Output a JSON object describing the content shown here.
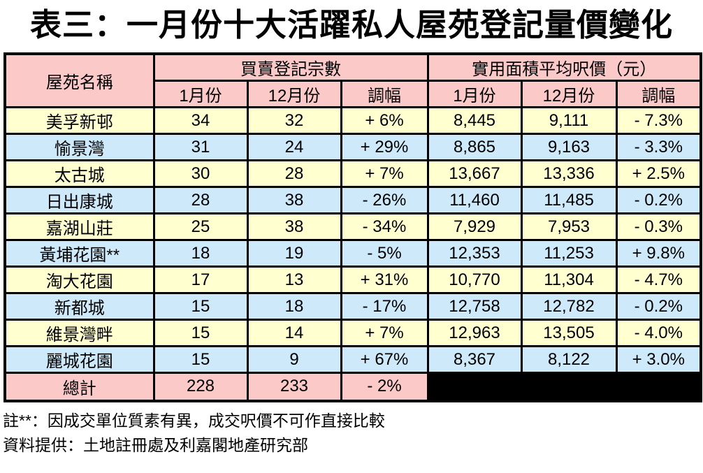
{
  "title": "表三：一月份十大活躍私人屋苑登記量價變化",
  "table": {
    "header": {
      "estate": "屋苑名稱",
      "registrations_group": "買賣登記宗數",
      "psf_group": "實用面積平均呎價（元）"
    },
    "sub_headers": [
      "1月份",
      "12月份",
      "調幅",
      "1月份",
      "12月份",
      "調幅"
    ],
    "rows": [
      {
        "name": "美孚新邨",
        "reg_jan": "34",
        "reg_dec": "32",
        "reg_chg": "+ 6%",
        "psf_jan": "8,445",
        "psf_dec": "9,111",
        "psf_chg": "- 7.3%"
      },
      {
        "name": "愉景灣",
        "reg_jan": "31",
        "reg_dec": "24",
        "reg_chg": "+ 29%",
        "psf_jan": "8,865",
        "psf_dec": "9,163",
        "psf_chg": "- 3.3%"
      },
      {
        "name": "太古城",
        "reg_jan": "30",
        "reg_dec": "28",
        "reg_chg": "+ 7%",
        "psf_jan": "13,667",
        "psf_dec": "13,336",
        "psf_chg": "+ 2.5%"
      },
      {
        "name": "日出康城",
        "reg_jan": "28",
        "reg_dec": "38",
        "reg_chg": "- 26%",
        "psf_jan": "11,460",
        "psf_dec": "11,485",
        "psf_chg": "- 0.2%"
      },
      {
        "name": "嘉湖山莊",
        "reg_jan": "25",
        "reg_dec": "38",
        "reg_chg": "- 34%",
        "psf_jan": "7,929",
        "psf_dec": "7,953",
        "psf_chg": "- 0.3%"
      },
      {
        "name": "黃埔花園**",
        "reg_jan": "18",
        "reg_dec": "19",
        "reg_chg": "- 5%",
        "psf_jan": "12,353",
        "psf_dec": "11,253",
        "psf_chg": "+ 9.8%"
      },
      {
        "name": "淘大花園",
        "reg_jan": "17",
        "reg_dec": "13",
        "reg_chg": "+ 31%",
        "psf_jan": "10,770",
        "psf_dec": "11,304",
        "psf_chg": "- 4.7%"
      },
      {
        "name": "新都城",
        "reg_jan": "15",
        "reg_dec": "18",
        "reg_chg": "- 17%",
        "psf_jan": "12,758",
        "psf_dec": "12,782",
        "psf_chg": "- 0.2%"
      },
      {
        "name": "維景灣畔",
        "reg_jan": "15",
        "reg_dec": "14",
        "reg_chg": "+ 7%",
        "psf_jan": "12,963",
        "psf_dec": "13,505",
        "psf_chg": "- 4.0%"
      },
      {
        "name": "麗城花園",
        "reg_jan": "15",
        "reg_dec": "9",
        "reg_chg": "+ 67%",
        "psf_jan": "8,367",
        "psf_dec": "8,122",
        "psf_chg": "+ 3.0%"
      }
    ],
    "total": {
      "name": "總計",
      "reg_jan": "228",
      "reg_dec": "233",
      "reg_chg": "- 2%"
    }
  },
  "footnotes": [
    "註**：因成交單位質素有異，成交呎價不可作直接比較",
    "資料提供：土地註冊處及利嘉閣地產研究部"
  ],
  "colors": {
    "header_pink": "#FCC9C9",
    "row_yellow": "#FFFFD0",
    "row_blue": "#CDE9FA",
    "blacked_out": "#000000",
    "border": "#000000"
  },
  "chart_data": {
    "type": "table",
    "title": "表三：一月份十大活躍私人屋苑登記量價變化",
    "columns": [
      "屋苑名稱",
      "買賣登記宗數 1月份",
      "買賣登記宗數 12月份",
      "買賣登記宗數 調幅",
      "實用面積平均呎價(元) 1月份",
      "實用面積平均呎價(元) 12月份",
      "實用面積平均呎價(元) 調幅"
    ],
    "rows": [
      [
        "美孚新邨",
        34,
        32,
        "+6%",
        8445,
        9111,
        "-7.3%"
      ],
      [
        "愉景灣",
        31,
        24,
        "+29%",
        8865,
        9163,
        "-3.3%"
      ],
      [
        "太古城",
        30,
        28,
        "+7%",
        13667,
        13336,
        "+2.5%"
      ],
      [
        "日出康城",
        28,
        38,
        "-26%",
        11460,
        11485,
        "-0.2%"
      ],
      [
        "嘉湖山莊",
        25,
        38,
        "-34%",
        7929,
        7953,
        "-0.3%"
      ],
      [
        "黃埔花園**",
        18,
        19,
        "-5%",
        12353,
        11253,
        "+9.8%"
      ],
      [
        "淘大花園",
        17,
        13,
        "+31%",
        10770,
        11304,
        "-4.7%"
      ],
      [
        "新都城",
        15,
        18,
        "-17%",
        12758,
        12782,
        "-0.2%"
      ],
      [
        "維景灣畔",
        15,
        14,
        "+7%",
        12963,
        13505,
        "-4.0%"
      ],
      [
        "麗城花園",
        15,
        9,
        "+67%",
        8367,
        8122,
        "+3.0%"
      ]
    ],
    "total_row": [
      "總計",
      228,
      233,
      "-2%",
      null,
      null,
      null
    ],
    "notes": [
      "註**：因成交單位質素有異，成交呎價不可作直接比較",
      "資料提供：土地註冊處及利嘉閣地產研究部"
    ]
  }
}
